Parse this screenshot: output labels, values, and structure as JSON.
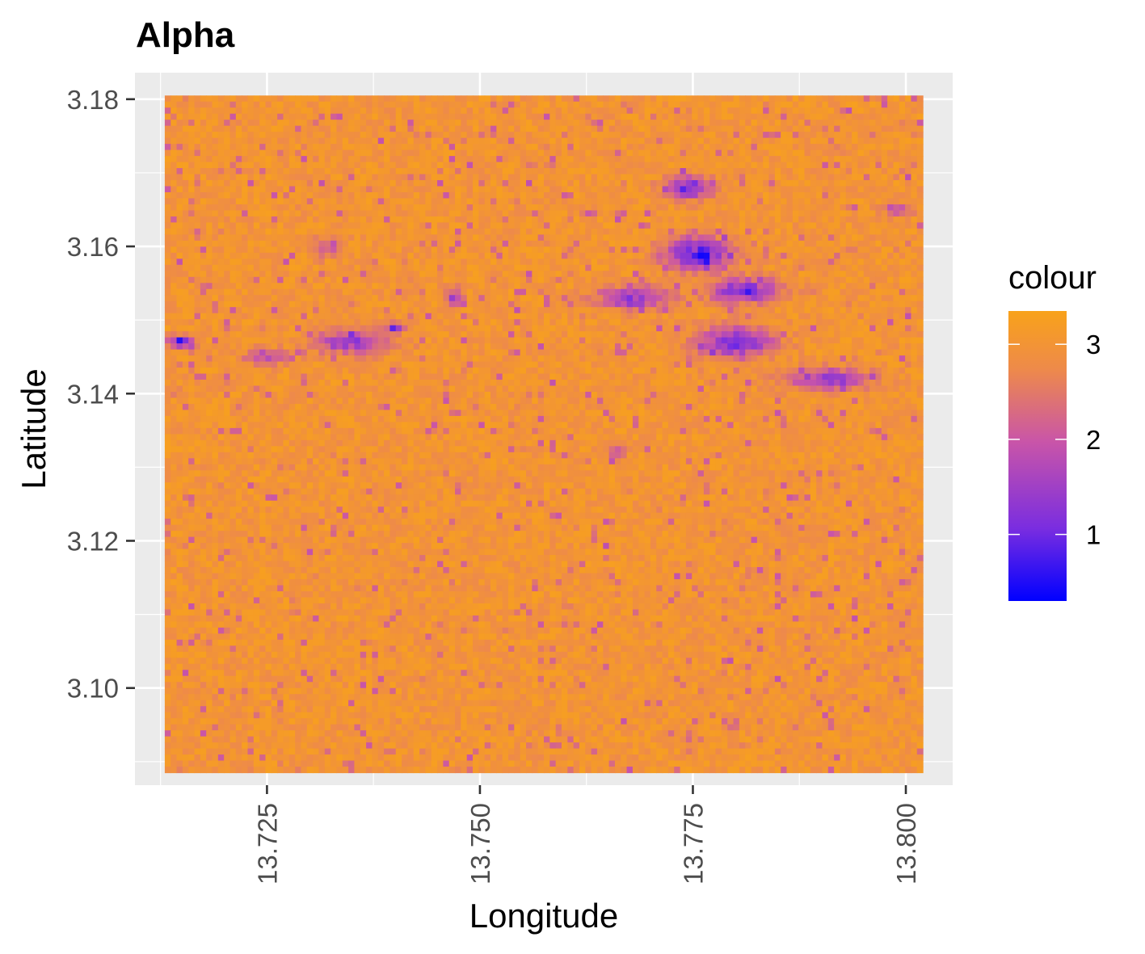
{
  "chart_data": {
    "type": "heatmap",
    "title": "Alpha",
    "xlabel": "Longitude",
    "ylabel": "Latitude",
    "xlim": [
      13.7095,
      13.8055
    ],
    "ylim": [
      3.0868,
      3.1836
    ],
    "data_extent": {
      "x": [
        13.713,
        13.802
      ],
      "y": [
        3.0885,
        3.1805
      ]
    },
    "x_ticks": [
      13.725,
      13.75,
      13.775,
      13.8
    ],
    "x_tick_labels": [
      "13.725",
      "13.750",
      "13.775",
      "13.800"
    ],
    "y_ticks": [
      3.1,
      3.12,
      3.14,
      3.16,
      3.18
    ],
    "y_tick_labels": [
      "3.10",
      "3.12",
      "3.14",
      "3.16",
      "3.18"
    ],
    "grid": true,
    "background": "#ebebeb",
    "grid_color": "#ffffff",
    "legend": {
      "title": "colour",
      "position": "right",
      "range": [
        0.3,
        3.35
      ],
      "ticks": [
        1,
        2,
        3
      ],
      "tick_labels": [
        "1",
        "2",
        "3"
      ],
      "low_color": "#0000ff",
      "mid_color": "#b43fb4",
      "high_color": "#f8a21a"
    },
    "grid_resolution": {
      "cols": 128,
      "rows": 112
    },
    "base_value": 3.0,
    "low_value_features": [
      {
        "x": 13.7745,
        "y": 3.168,
        "rx": 0.003,
        "ry": 0.0018,
        "min": 0.8
      },
      {
        "x": 13.7755,
        "y": 3.159,
        "rx": 0.0045,
        "ry": 0.0025,
        "min": 0.6
      },
      {
        "x": 13.781,
        "y": 3.154,
        "rx": 0.005,
        "ry": 0.002,
        "min": 1.0
      },
      {
        "x": 13.768,
        "y": 3.153,
        "rx": 0.005,
        "ry": 0.0018,
        "min": 1.2
      },
      {
        "x": 13.78,
        "y": 3.147,
        "rx": 0.005,
        "ry": 0.0025,
        "min": 0.9
      },
      {
        "x": 13.791,
        "y": 3.142,
        "rx": 0.006,
        "ry": 0.0018,
        "min": 1.4
      },
      {
        "x": 13.799,
        "y": 3.165,
        "rx": 0.002,
        "ry": 0.001,
        "min": 1.6
      },
      {
        "x": 13.735,
        "y": 3.147,
        "rx": 0.005,
        "ry": 0.002,
        "min": 1.3
      },
      {
        "x": 13.74,
        "y": 3.149,
        "rx": 0.0012,
        "ry": 0.0008,
        "min": 0.9
      },
      {
        "x": 13.715,
        "y": 3.147,
        "rx": 0.002,
        "ry": 0.001,
        "min": 1.2
      },
      {
        "x": 13.725,
        "y": 3.145,
        "rx": 0.003,
        "ry": 0.0012,
        "min": 1.7
      },
      {
        "x": 13.747,
        "y": 3.153,
        "rx": 0.0012,
        "ry": 0.0016,
        "min": 1.4
      },
      {
        "x": 13.766,
        "y": 3.132,
        "rx": 0.001,
        "ry": 0.0012,
        "min": 1.8
      },
      {
        "x": 13.732,
        "y": 3.16,
        "rx": 0.002,
        "ry": 0.0015,
        "min": 1.9
      }
    ]
  }
}
